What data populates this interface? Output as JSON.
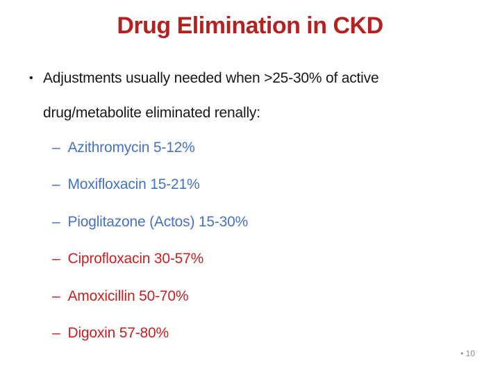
{
  "slide": {
    "title": "Drug Elimination in CKD",
    "bullet_char": "•",
    "dash_char": "–",
    "main_bullet": "Adjustments usually needed when >25-30% of active drug/metabolite eliminated renally:",
    "drugs": [
      {
        "label": "Azithromycin 5-12%",
        "color": "blue"
      },
      {
        "label": "Moxifloxacin 15-21%",
        "color": "blue"
      },
      {
        "label": "Pioglitazone (Actos) 15-30%",
        "color": "blue"
      },
      {
        "label": "Ciprofloxacin 30-57%",
        "color": "red"
      },
      {
        "label": "Amoxicillin 50-70%",
        "color": "red"
      },
      {
        "label": "Digoxin 57-80%",
        "color": "red"
      }
    ],
    "slide_number": "• 10",
    "colors": {
      "background": "#FFFFFF",
      "title": "#B42121",
      "body": "#171717",
      "blue": "#4472C4",
      "red": "#C42222",
      "slide_number": "#8C8C8C"
    }
  }
}
